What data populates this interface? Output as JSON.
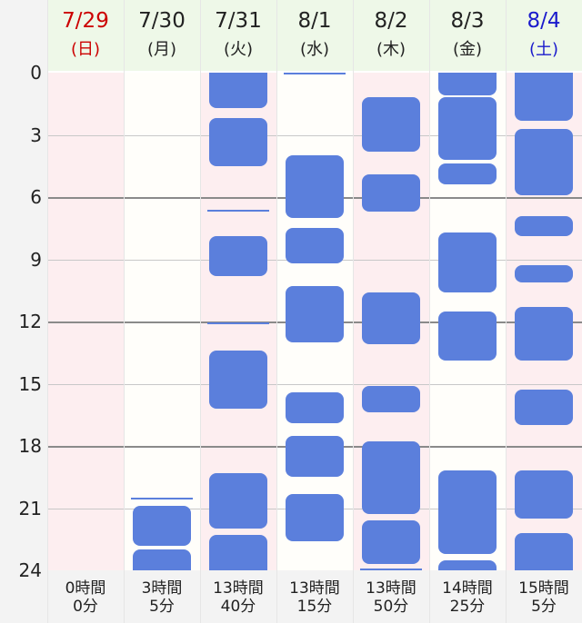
{
  "colors": {
    "sunday": "#cc0000",
    "saturday": "#1a1acc",
    "weekday": "#222222",
    "block": "#5b7fdc",
    "pink_bg": "#fdeef0",
    "white_bg": "#fffefa"
  },
  "y_axis": {
    "ticks": [
      "0",
      "3",
      "6",
      "9",
      "12",
      "15",
      "18",
      "21",
      "24"
    ],
    "min": 0,
    "max": 24
  },
  "days": [
    {
      "date": "7/29",
      "dow": "(日)",
      "total_line1": "0時間",
      "total_line2": "0分",
      "color": "#cc0000",
      "bg": "pink",
      "sessions": []
    },
    {
      "date": "7/30",
      "dow": "(月)",
      "total_line1": "3時間",
      "total_line2": "5分",
      "color": "#222222",
      "bg": "white",
      "sessions": [
        [
          20.5,
          20.6
        ],
        [
          20.9,
          22.8
        ],
        [
          23.0,
          24.0
        ]
      ]
    },
    {
      "date": "7/31",
      "dow": "(火)",
      "total_line1": "13時間",
      "total_line2": "40分",
      "color": "#222222",
      "bg": "pink",
      "sessions": [
        [
          0,
          1.7
        ],
        [
          2.2,
          4.5
        ],
        [
          6.6,
          6.7
        ],
        [
          7.9,
          9.8
        ],
        [
          12.05,
          12.15
        ],
        [
          13.4,
          16.2
        ],
        [
          19.3,
          22.0
        ],
        [
          22.3,
          24.0
        ]
      ]
    },
    {
      "date": "8/1",
      "dow": "(水)",
      "total_line1": "13時間",
      "total_line2": "15分",
      "color": "#222222",
      "bg": "white",
      "sessions": [
        [
          0,
          0.15
        ],
        [
          4.0,
          7.0
        ],
        [
          7.5,
          9.2
        ],
        [
          10.3,
          13.0
        ],
        [
          15.4,
          16.9
        ],
        [
          17.5,
          19.5
        ],
        [
          20.3,
          22.6
        ]
      ]
    },
    {
      "date": "8/2",
      "dow": "(木)",
      "total_line1": "13時間",
      "total_line2": "50分",
      "color": "#222222",
      "bg": "pink",
      "sessions": [
        [
          1.2,
          3.8
        ],
        [
          4.9,
          6.7
        ],
        [
          10.6,
          13.1
        ],
        [
          15.1,
          16.4
        ],
        [
          17.8,
          21.3
        ],
        [
          21.6,
          23.7
        ],
        [
          23.9,
          24.0
        ]
      ]
    },
    {
      "date": "8/3",
      "dow": "(金)",
      "total_line1": "14時間",
      "total_line2": "25分",
      "color": "#222222",
      "bg": "white",
      "sessions": [
        [
          0,
          1.1
        ],
        [
          1.2,
          4.2
        ],
        [
          4.4,
          5.4
        ],
        [
          7.7,
          10.6
        ],
        [
          11.5,
          13.9
        ],
        [
          19.2,
          23.2
        ],
        [
          23.5,
          24.0
        ]
      ]
    },
    {
      "date": "8/4",
      "dow": "(土)",
      "total_line1": "15時間",
      "total_line2": "5分",
      "color": "#1a1acc",
      "bg": "pink",
      "sessions": [
        [
          0,
          2.3
        ],
        [
          2.7,
          5.9
        ],
        [
          6.9,
          7.9
        ],
        [
          9.3,
          10.1
        ],
        [
          11.3,
          13.9
        ],
        [
          15.3,
          17.0
        ],
        [
          19.2,
          21.5
        ],
        [
          22.2,
          24.0
        ]
      ]
    }
  ]
}
